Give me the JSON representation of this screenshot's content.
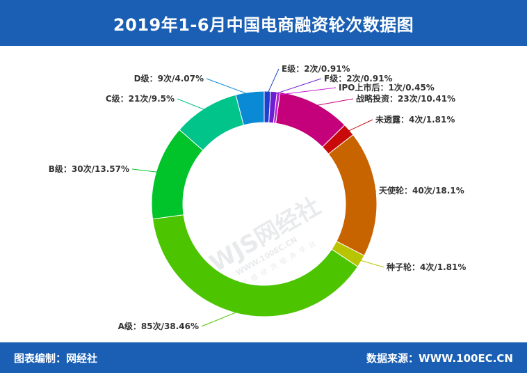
{
  "header": {
    "title": "2019年1-6月中国电商融资轮次数据图"
  },
  "footer": {
    "source_left": "图表编制：网经社",
    "source_right": "数据来源：WWW.100EC.CN"
  },
  "watermark": {
    "logo": "WJS网经社",
    "url": "WWW.100EC.CN",
    "tagline": "网络经济服务平台"
  },
  "chart_data": {
    "type": "pie",
    "donut": true,
    "start": "top",
    "direction": "clockwise",
    "slices": [
      {
        "label": "E级：2次/0.91%",
        "value": 0.91,
        "color": "#1f3fd1"
      },
      {
        "label": "F级：2次/0.91%",
        "value": 0.91,
        "color": "#6b1fd1"
      },
      {
        "label": "IPO上市后：1次/0.45%",
        "value": 0.45,
        "color": "#c21fd1"
      },
      {
        "label": "战略投资：23次/10.41%",
        "value": 10.41,
        "color": "#c4007a"
      },
      {
        "label": "未透露：4次/1.81%",
        "value": 1.81,
        "color": "#c80a0a"
      },
      {
        "label": "天使轮：40次/18.1%",
        "value": 18.1,
        "color": "#c86400"
      },
      {
        "label": "种子轮：4次/1.81%",
        "value": 1.81,
        "color": "#b8c400"
      },
      {
        "label": "A级：85次/38.46%",
        "value": 38.46,
        "color": "#4cc400"
      },
      {
        "label": "B级：30次/13.57%",
        "value": 13.57,
        "color": "#00c42a"
      },
      {
        "label": "C级：21次/9.5%",
        "value": 9.5,
        "color": "#00c48a"
      },
      {
        "label": "D级：9次/4.07%",
        "value": 4.07,
        "color": "#0a8ad4"
      }
    ]
  }
}
